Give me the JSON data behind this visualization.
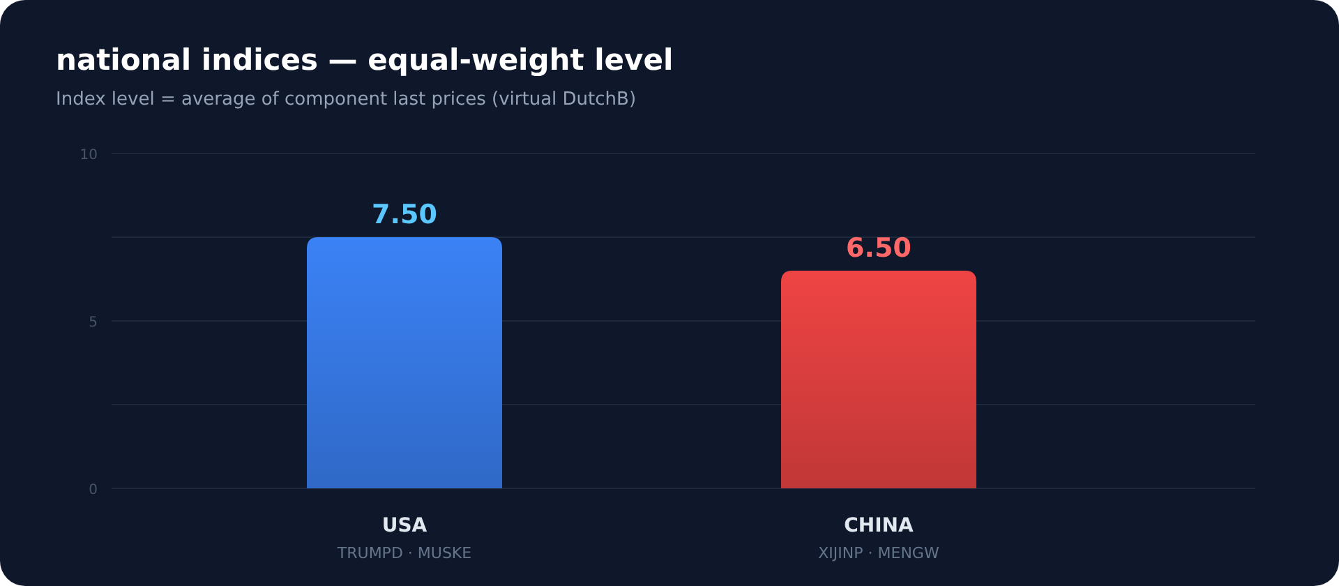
{
  "chart_data": {
    "type": "bar",
    "title": "national indices — equal-weight level",
    "subtitle": "Index level = average of component last prices (virtual DutchB)",
    "categories": [
      "USA",
      "CHINA"
    ],
    "values": [
      7.5,
      6.5
    ],
    "colors": [
      "#3b82f6",
      "#ef4444"
    ],
    "value_labels": [
      "7.50",
      "6.50"
    ],
    "annotations": [
      "TRUMPD · MUSKE",
      "XIJINP · MENGW"
    ],
    "ylim": [
      0,
      10
    ],
    "yticks": [
      0,
      {
        "value": 2.5,
        "label": null
      },
      5,
      {
        "value": 7.5,
        "label": null
      },
      10
    ],
    "grid": "y"
  }
}
